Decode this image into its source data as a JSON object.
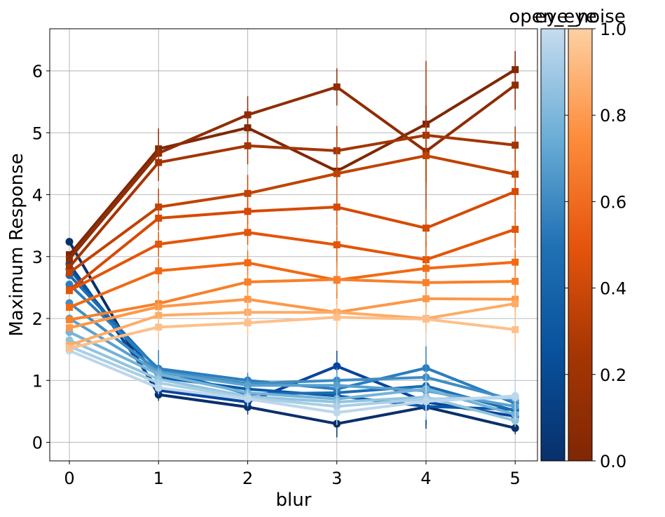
{
  "chart_data": {
    "type": "line",
    "xlabel": "blur",
    "ylabel": "Maximum Response",
    "xlim": [
      -0.22,
      5.25
    ],
    "ylim": [
      -0.3,
      6.68
    ],
    "x": [
      0,
      1,
      2,
      3,
      4,
      5
    ],
    "xticks": [
      "0",
      "1",
      "2",
      "3",
      "4",
      "5"
    ],
    "yticks": [
      "0",
      "1",
      "2",
      "3",
      "4",
      "5",
      "6"
    ],
    "grid": true,
    "colorbars": [
      {
        "title": "open_eye",
        "colormap": "Blues",
        "range": [
          0.0,
          1.0
        ],
        "ticks": [
          "0.0",
          "0.2",
          "0.4",
          "0.6",
          "0.8",
          "1.0"
        ]
      },
      {
        "title": "eye_noise",
        "colormap": "Oranges",
        "range": [
          0.0,
          1.0
        ],
        "ticks": [
          "0.0",
          "0.2",
          "0.4",
          "0.6",
          "0.8",
          "1.0"
        ]
      }
    ],
    "series": [
      {
        "group": "open_eye",
        "marker": "circle",
        "color": "#08306b",
        "values": [
          3.24,
          0.77,
          0.57,
          0.3,
          0.57,
          0.23
        ],
        "err": [
          0.05,
          0.1,
          0.12,
          0.22,
          0.35,
          0.1
        ]
      },
      {
        "group": "open_eye",
        "marker": "circle",
        "color": "#08449c",
        "values": [
          2.88,
          0.84,
          0.65,
          1.23,
          0.65,
          0.42
        ],
        "err": [
          0.05,
          0.1,
          0.12,
          0.25,
          0.35,
          0.1
        ]
      },
      {
        "group": "open_eye",
        "marker": "circle",
        "color": "#0a58a8",
        "values": [
          2.8,
          1.05,
          0.86,
          0.75,
          0.58,
          0.53
        ],
        "err": [
          0.05,
          0.1,
          0.12,
          0.2,
          0.3,
          0.1
        ]
      },
      {
        "group": "open_eye",
        "marker": "circle",
        "color": "#1a6db3",
        "values": [
          2.7,
          1.17,
          0.78,
          0.8,
          0.91,
          0.51
        ],
        "err": [
          0.05,
          0.1,
          0.12,
          0.2,
          0.3,
          0.1
        ]
      },
      {
        "group": "open_eye",
        "marker": "circle",
        "color": "#2c7dbd",
        "values": [
          2.55,
          1.19,
          1.0,
          0.86,
          1.2,
          0.63
        ],
        "err": [
          0.05,
          0.3,
          0.12,
          0.2,
          0.35,
          0.1
        ]
      },
      {
        "group": "open_eye",
        "marker": "circle",
        "color": "#3d8dc4",
        "values": [
          2.25,
          1.15,
          0.95,
          1.0,
          1.05,
          0.68
        ],
        "err": [
          0.05,
          0.15,
          0.12,
          0.2,
          0.3,
          0.1
        ]
      },
      {
        "group": "open_eye",
        "marker": "circle",
        "color": "#5aa1ce",
        "values": [
          2.0,
          1.13,
          0.92,
          0.92,
          0.83,
          0.58
        ],
        "err": [
          0.05,
          0.1,
          0.12,
          0.2,
          0.3,
          0.1
        ]
      },
      {
        "group": "open_eye",
        "marker": "circle",
        "color": "#75b3d8",
        "values": [
          1.78,
          1.1,
          0.8,
          0.7,
          0.86,
          0.45
        ],
        "err": [
          0.05,
          0.1,
          0.12,
          0.2,
          0.3,
          0.1
        ]
      },
      {
        "group": "open_eye",
        "marker": "circle",
        "color": "#93c4de",
        "values": [
          1.65,
          1.02,
          0.74,
          0.65,
          0.73,
          0.35
        ],
        "err": [
          0.05,
          0.1,
          0.12,
          0.2,
          0.3,
          0.1
        ]
      },
      {
        "group": "open_eye",
        "marker": "circle",
        "color": "#a9cfe5",
        "values": [
          1.55,
          0.96,
          0.72,
          0.58,
          0.7,
          0.72
        ],
        "err": [
          0.05,
          0.1,
          0.12,
          0.2,
          0.3,
          0.3
        ]
      },
      {
        "group": "open_eye",
        "marker": "circle",
        "color": "#bdd7ec",
        "values": [
          1.48,
          0.88,
          0.7,
          0.48,
          0.66,
          0.75
        ],
        "err": [
          0.05,
          0.1,
          0.12,
          0.2,
          0.3,
          0.4
        ]
      },
      {
        "group": "eye_noise",
        "marker": "square",
        "color": "#7f2704",
        "values": [
          3.03,
          4.74,
          5.08,
          4.38,
          5.14,
          6.02
        ],
        "err": [
          0.05,
          0.3,
          0.3,
          0.3,
          0.3,
          0.3
        ]
      },
      {
        "group": "eye_noise",
        "marker": "square",
        "color": "#8e2d04",
        "values": [
          2.96,
          4.67,
          5.29,
          5.74,
          4.7,
          5.77
        ],
        "err": [
          0.05,
          0.4,
          0.3,
          0.3,
          0.5,
          0.4
        ]
      },
      {
        "group": "eye_noise",
        "marker": "square",
        "color": "#a33503",
        "values": [
          2.83,
          4.52,
          4.79,
          4.71,
          4.96,
          4.8
        ],
        "err": [
          0.05,
          0.3,
          0.3,
          0.4,
          1.2,
          0.3
        ]
      },
      {
        "group": "eye_noise",
        "marker": "square",
        "color": "#c04301",
        "values": [
          2.74,
          3.8,
          4.02,
          4.34,
          4.63,
          4.33
        ],
        "err": [
          0.05,
          0.3,
          0.3,
          0.6,
          0.5,
          0.3
        ]
      },
      {
        "group": "eye_noise",
        "marker": "square",
        "color": "#d64a02",
        "values": [
          2.46,
          3.62,
          3.73,
          3.8,
          3.46,
          4.05
        ],
        "err": [
          0.05,
          0.2,
          0.2,
          0.3,
          0.3,
          0.3
        ]
      },
      {
        "group": "eye_noise",
        "marker": "square",
        "color": "#e35508",
        "values": [
          2.45,
          3.2,
          3.39,
          3.19,
          2.95,
          3.44
        ],
        "err": [
          0.05,
          0.2,
          0.2,
          0.3,
          0.3,
          0.3
        ]
      },
      {
        "group": "eye_noise",
        "marker": "square",
        "color": "#f16913",
        "values": [
          2.18,
          2.77,
          2.9,
          2.62,
          2.81,
          2.91
        ],
        "err": [
          0.05,
          0.2,
          0.2,
          0.3,
          0.2,
          0.2
        ]
      },
      {
        "group": "eye_noise",
        "marker": "square",
        "color": "#f8802b",
        "values": [
          1.98,
          2.24,
          2.59,
          2.63,
          2.58,
          2.6
        ],
        "err": [
          0.05,
          0.2,
          0.2,
          0.2,
          0.2,
          0.2
        ]
      },
      {
        "group": "eye_noise",
        "marker": "square",
        "color": "#fd9849",
        "values": [
          1.85,
          2.19,
          2.31,
          2.1,
          2.32,
          2.31
        ],
        "err": [
          0.05,
          0.2,
          0.2,
          0.2,
          0.2,
          0.2
        ]
      },
      {
        "group": "eye_noise",
        "marker": "square",
        "color": "#fdac67",
        "values": [
          1.57,
          2.05,
          2.1,
          2.1,
          2.0,
          2.24
        ],
        "err": [
          0.05,
          0.2,
          0.2,
          0.2,
          0.2,
          0.2
        ]
      },
      {
        "group": "eye_noise",
        "marker": "square",
        "color": "#fdc08b",
        "values": [
          1.52,
          1.86,
          1.93,
          2.02,
          1.99,
          1.82
        ],
        "err": [
          0.05,
          0.2,
          0.2,
          0.2,
          0.2,
          0.3
        ]
      }
    ]
  }
}
